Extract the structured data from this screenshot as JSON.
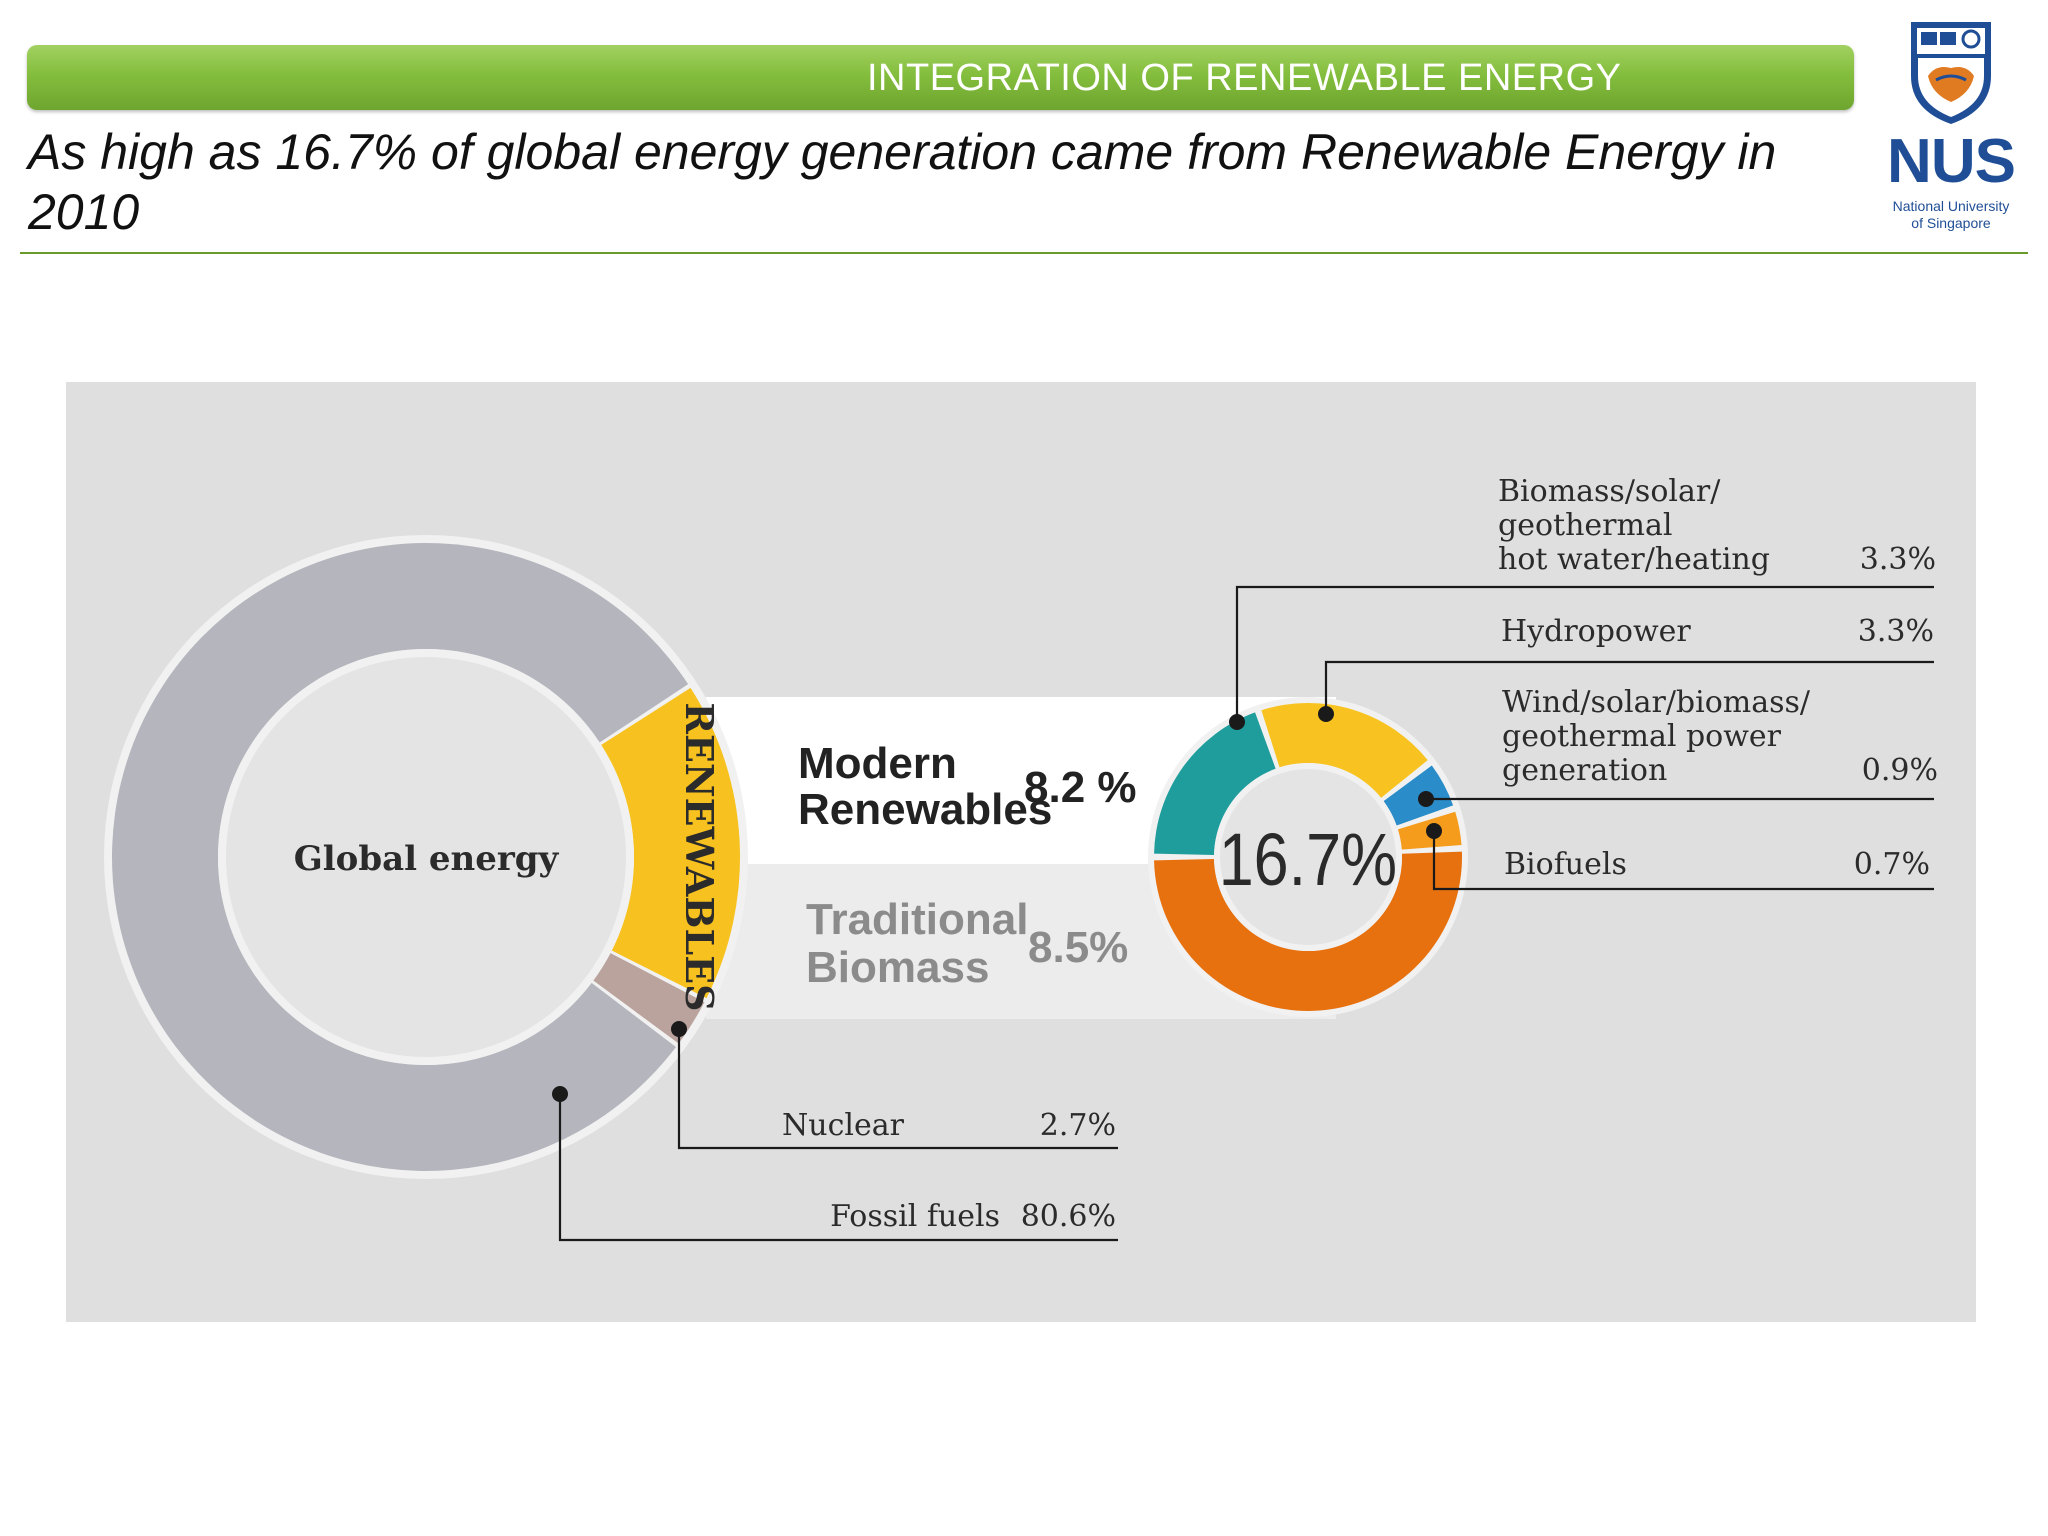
{
  "header": {
    "title": "INTEGRATION OF RENEWABLE ENERGY",
    "subtitle": "As high as 16.7% of global energy generation came from Renewable Energy in 2010"
  },
  "logo": {
    "name": "NUS",
    "line1": "National University",
    "line2": "of Singapore",
    "color": "#1f4e96"
  },
  "chart_data": [
    {
      "type": "pie",
      "center_label": "Global energy",
      "ring_label": "RENEWABLES",
      "slices": [
        {
          "label": "Fossil fuels",
          "value": 80.6,
          "display": "80.6%",
          "color": "#b5b6bd"
        },
        {
          "label": "Renewables",
          "value": 16.7,
          "display": "16.7%",
          "color": "#f7c21f"
        },
        {
          "label": "Nuclear",
          "value": 2.7,
          "display": "2.7%",
          "color": "#b9a39c"
        }
      ],
      "breakdown": [
        {
          "label": "Modern Renewables",
          "value": 8.2,
          "display": "8.2 %"
        },
        {
          "label": "Traditional Biomass",
          "value": 8.5,
          "display": "8.5%"
        }
      ]
    },
    {
      "type": "pie",
      "center_label": "16.7%",
      "slices": [
        {
          "label": "Traditional Biomass",
          "value": 8.5,
          "display": "",
          "color": "#e8710f"
        },
        {
          "label": "Biomass/solar/ geothermal hot water/heating",
          "value": 3.3,
          "display": "3.3%",
          "color": "#1f9d9c"
        },
        {
          "label": "Hydropower",
          "value": 3.3,
          "display": "3.3%",
          "color": "#f8c320"
        },
        {
          "label": "Wind/solar/biomass/ geothermal power generation",
          "value": 0.9,
          "display": "0.9%",
          "color": "#2a8cc8"
        },
        {
          "label": "Biofuels",
          "value": 0.7,
          "display": "0.7%",
          "color": "#f59c1c"
        }
      ]
    }
  ],
  "labels": {
    "modern_line1": "Modern",
    "modern_line2": "Renewables",
    "modern_value": "8.2 %",
    "trad_line1": "Traditional",
    "trad_line2": "Biomass",
    "trad_value": "8.5%",
    "hotwater_line1": "Biomass/solar/",
    "hotwater_line2": "geothermal",
    "hotwater_line3": "hot water/heating",
    "hotwater_value": "3.3%",
    "hydro": "Hydropower",
    "hydro_value": "3.3%",
    "wind_line1": "Wind/solar/biomass/",
    "wind_line2": "geothermal power",
    "wind_line3": "generation",
    "wind_value": "0.9%",
    "biofuels": "Biofuels",
    "biofuels_value": "0.7%",
    "nuclear": "Nuclear",
    "nuclear_value": "2.7%",
    "fossil": "Fossil fuels",
    "fossil_value": "80.6%"
  }
}
